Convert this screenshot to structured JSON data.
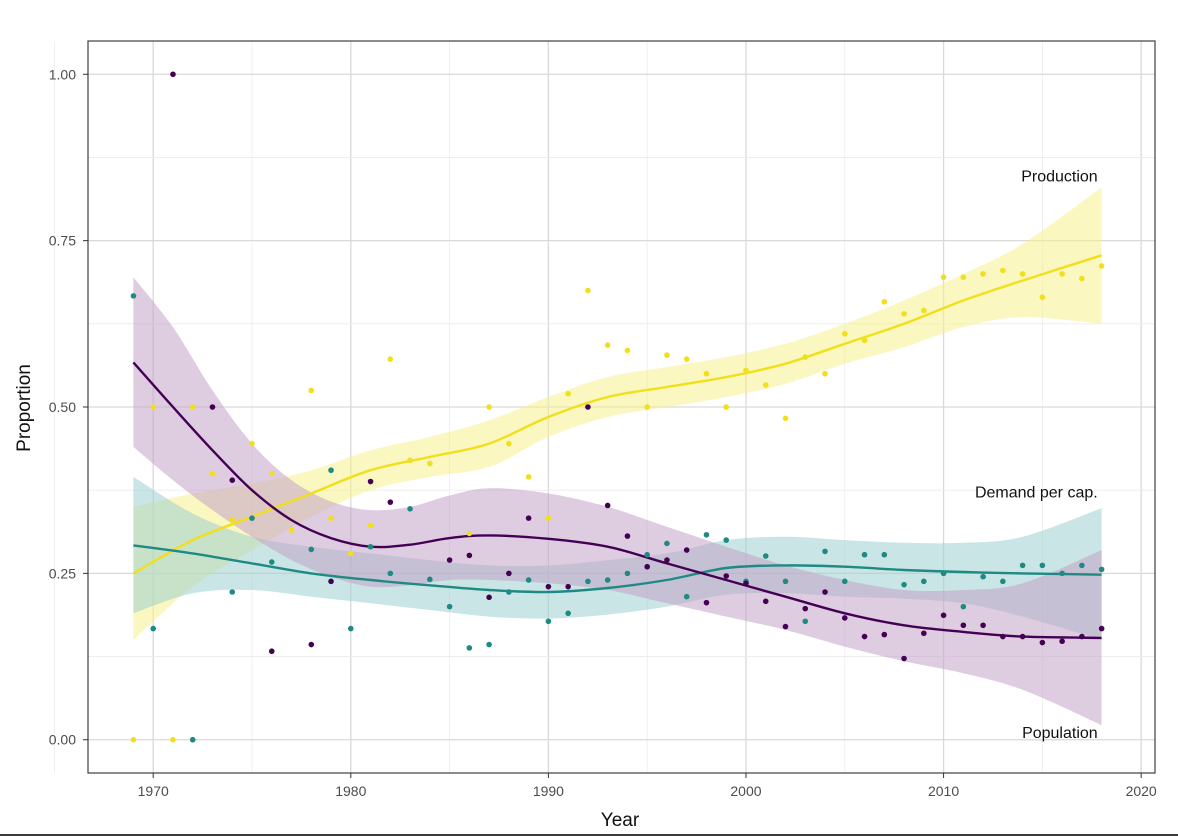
{
  "chart_data": {
    "type": "scatter",
    "title": "",
    "xlabel": "Year",
    "ylabel": "Proportion",
    "xlim": [
      1966.7,
      2020.7
    ],
    "ylim": [
      -0.05,
      1.05
    ],
    "x_ticks": [
      1970,
      1980,
      1990,
      2000,
      2010,
      2020
    ],
    "y_ticks": [
      0.0,
      0.25,
      0.5,
      0.75,
      1.0
    ],
    "y_tick_labels": [
      "0.00",
      "0.25",
      "0.50",
      "0.75",
      "1.00"
    ],
    "grid": true,
    "legend": "direct labels at right end of each trend",
    "series": [
      {
        "name": "Production",
        "color": "#f2df1b",
        "band_color": "#f6f08c",
        "points": [
          [
            1969,
            0.0
          ],
          [
            1970,
            0.5
          ],
          [
            1971,
            0.0
          ],
          [
            1972,
            0.5
          ],
          [
            1973,
            0.4
          ],
          [
            1974,
            0.33
          ],
          [
            1975,
            0.445
          ],
          [
            1976,
            0.4
          ],
          [
            1977,
            0.315
          ],
          [
            1978,
            0.525
          ],
          [
            1979,
            0.333
          ],
          [
            1980,
            0.28
          ],
          [
            1981,
            0.322
          ],
          [
            1982,
            0.572
          ],
          [
            1983,
            0.42
          ],
          [
            1984,
            0.415
          ],
          [
            1986,
            0.31
          ],
          [
            1987,
            0.5
          ],
          [
            1988,
            0.445
          ],
          [
            1989,
            0.395
          ],
          [
            1990,
            0.333
          ],
          [
            1991,
            0.52
          ],
          [
            1992,
            0.675
          ],
          [
            1993,
            0.593
          ],
          [
            1994,
            0.585
          ],
          [
            1995,
            0.5
          ],
          [
            1996,
            0.578
          ],
          [
            1997,
            0.572
          ],
          [
            1998,
            0.55
          ],
          [
            1999,
            0.5
          ],
          [
            2000,
            0.555
          ],
          [
            2001,
            0.533
          ],
          [
            2002,
            0.483
          ],
          [
            2003,
            0.575
          ],
          [
            2004,
            0.55
          ],
          [
            2005,
            0.61
          ],
          [
            2006,
            0.6
          ],
          [
            2007,
            0.658
          ],
          [
            2008,
            0.64
          ],
          [
            2009,
            0.645
          ],
          [
            2010,
            0.695
          ],
          [
            2011,
            0.695
          ],
          [
            2012,
            0.7
          ],
          [
            2013,
            0.705
          ],
          [
            2014,
            0.7
          ],
          [
            2015,
            0.665
          ],
          [
            2016,
            0.7
          ],
          [
            2017,
            0.693
          ],
          [
            2018,
            0.712
          ]
        ],
        "trend": [
          [
            1969,
            0.25
          ],
          [
            1972,
            0.3
          ],
          [
            1975,
            0.335
          ],
          [
            1978,
            0.37
          ],
          [
            1981,
            0.405
          ],
          [
            1984,
            0.425
          ],
          [
            1987,
            0.445
          ],
          [
            1990,
            0.485
          ],
          [
            1993,
            0.515
          ],
          [
            1996,
            0.53
          ],
          [
            1999,
            0.545
          ],
          [
            2002,
            0.565
          ],
          [
            2005,
            0.595
          ],
          [
            2008,
            0.625
          ],
          [
            2011,
            0.66
          ],
          [
            2014,
            0.69
          ],
          [
            2018,
            0.728
          ]
        ],
        "band_upper": [
          [
            1969,
            0.35
          ],
          [
            1972,
            0.37
          ],
          [
            1975,
            0.385
          ],
          [
            1978,
            0.405
          ],
          [
            1981,
            0.435
          ],
          [
            1984,
            0.455
          ],
          [
            1987,
            0.48
          ],
          [
            1990,
            0.515
          ],
          [
            1993,
            0.545
          ],
          [
            1996,
            0.56
          ],
          [
            1999,
            0.575
          ],
          [
            2002,
            0.595
          ],
          [
            2005,
            0.625
          ],
          [
            2008,
            0.66
          ],
          [
            2011,
            0.7
          ],
          [
            2014,
            0.745
          ],
          [
            2018,
            0.83
          ]
        ],
        "band_lower": [
          [
            1969,
            0.15
          ],
          [
            1972,
            0.23
          ],
          [
            1975,
            0.285
          ],
          [
            1978,
            0.335
          ],
          [
            1981,
            0.375
          ],
          [
            1984,
            0.395
          ],
          [
            1987,
            0.41
          ],
          [
            1990,
            0.455
          ],
          [
            1993,
            0.485
          ],
          [
            1996,
            0.5
          ],
          [
            1999,
            0.515
          ],
          [
            2002,
            0.535
          ],
          [
            2005,
            0.565
          ],
          [
            2008,
            0.59
          ],
          [
            2011,
            0.62
          ],
          [
            2014,
            0.635
          ],
          [
            2018,
            0.625
          ]
        ],
        "label_x": 2017.8,
        "label_y": 0.848
      },
      {
        "name": "Demand per cap.",
        "color": "#1f8a83",
        "band_color": "#9fcfd0",
        "points": [
          [
            1969,
            0.667
          ],
          [
            1970,
            0.167
          ],
          [
            1972,
            0.0
          ],
          [
            1974,
            0.222
          ],
          [
            1975,
            0.333
          ],
          [
            1976,
            0.267
          ],
          [
            1978,
            0.286
          ],
          [
            1979,
            0.405
          ],
          [
            1980,
            0.167
          ],
          [
            1981,
            0.29
          ],
          [
            1982,
            0.25
          ],
          [
            1983,
            0.347
          ],
          [
            1984,
            0.241
          ],
          [
            1985,
            0.2
          ],
          [
            1986,
            0.138
          ],
          [
            1987,
            0.143
          ],
          [
            1988,
            0.222
          ],
          [
            1989,
            0.24
          ],
          [
            1990,
            0.178
          ],
          [
            1991,
            0.19
          ],
          [
            1992,
            0.238
          ],
          [
            1993,
            0.24
          ],
          [
            1994,
            0.25
          ],
          [
            1995,
            0.278
          ],
          [
            1996,
            0.295
          ],
          [
            1997,
            0.215
          ],
          [
            1998,
            0.308
          ],
          [
            1999,
            0.3
          ],
          [
            2000,
            0.238
          ],
          [
            2001,
            0.276
          ],
          [
            2002,
            0.238
          ],
          [
            2003,
            0.178
          ],
          [
            2004,
            0.283
          ],
          [
            2005,
            0.238
          ],
          [
            2006,
            0.278
          ],
          [
            2007,
            0.278
          ],
          [
            2008,
            0.233
          ],
          [
            2009,
            0.238
          ],
          [
            2010,
            0.25
          ],
          [
            2011,
            0.2
          ],
          [
            2012,
            0.245
          ],
          [
            2013,
            0.238
          ],
          [
            2014,
            0.262
          ],
          [
            2015,
            0.262
          ],
          [
            2016,
            0.25
          ],
          [
            2017,
            0.262
          ],
          [
            2018,
            0.256
          ]
        ],
        "trend": [
          [
            1969,
            0.292
          ],
          [
            1972,
            0.28
          ],
          [
            1975,
            0.265
          ],
          [
            1978,
            0.25
          ],
          [
            1981,
            0.24
          ],
          [
            1984,
            0.232
          ],
          [
            1987,
            0.225
          ],
          [
            1990,
            0.222
          ],
          [
            1993,
            0.228
          ],
          [
            1996,
            0.24
          ],
          [
            1999,
            0.258
          ],
          [
            2002,
            0.262
          ],
          [
            2005,
            0.26
          ],
          [
            2008,
            0.255
          ],
          [
            2011,
            0.252
          ],
          [
            2014,
            0.25
          ],
          [
            2018,
            0.248
          ]
        ],
        "band_upper": [
          [
            1969,
            0.395
          ],
          [
            1972,
            0.34
          ],
          [
            1975,
            0.305
          ],
          [
            1978,
            0.29
          ],
          [
            1981,
            0.28
          ],
          [
            1984,
            0.27
          ],
          [
            1987,
            0.262
          ],
          [
            1990,
            0.262
          ],
          [
            1993,
            0.27
          ],
          [
            1996,
            0.28
          ],
          [
            1999,
            0.3
          ],
          [
            2002,
            0.305
          ],
          [
            2005,
            0.3
          ],
          [
            2008,
            0.296
          ],
          [
            2011,
            0.296
          ],
          [
            2014,
            0.305
          ],
          [
            2018,
            0.348
          ]
        ],
        "band_lower": [
          [
            1969,
            0.19
          ],
          [
            1972,
            0.22
          ],
          [
            1975,
            0.225
          ],
          [
            1978,
            0.215
          ],
          [
            1981,
            0.205
          ],
          [
            1984,
            0.195
          ],
          [
            1987,
            0.185
          ],
          [
            1990,
            0.182
          ],
          [
            1993,
            0.188
          ],
          [
            1996,
            0.2
          ],
          [
            1999,
            0.218
          ],
          [
            2002,
            0.22
          ],
          [
            2005,
            0.215
          ],
          [
            2008,
            0.212
          ],
          [
            2011,
            0.205
          ],
          [
            2014,
            0.185
          ],
          [
            2018,
            0.15
          ]
        ],
        "label_x": 2017.8,
        "label_y": 0.373
      },
      {
        "name": "Population",
        "color": "#440154",
        "band_color": "#c2a2c9",
        "points": [
          [
            1971,
            1.0
          ],
          [
            1973,
            0.5
          ],
          [
            1974,
            0.39
          ],
          [
            1976,
            0.133
          ],
          [
            1978,
            0.143
          ],
          [
            1979,
            0.238
          ],
          [
            1981,
            0.388
          ],
          [
            1982,
            0.357
          ],
          [
            1985,
            0.27
          ],
          [
            1986,
            0.277
          ],
          [
            1987,
            0.214
          ],
          [
            1988,
            0.25
          ],
          [
            1989,
            0.333
          ],
          [
            1990,
            0.23
          ],
          [
            1991,
            0.23
          ],
          [
            1992,
            0.5
          ],
          [
            1993,
            0.352
          ],
          [
            1994,
            0.306
          ],
          [
            1995,
            0.26
          ],
          [
            1996,
            0.27
          ],
          [
            1997,
            0.285
          ],
          [
            1998,
            0.206
          ],
          [
            1999,
            0.246
          ],
          [
            2000,
            0.235
          ],
          [
            2001,
            0.208
          ],
          [
            2002,
            0.17
          ],
          [
            2003,
            0.197
          ],
          [
            2004,
            0.222
          ],
          [
            2005,
            0.183
          ],
          [
            2006,
            0.155
          ],
          [
            2007,
            0.158
          ],
          [
            2008,
            0.122
          ],
          [
            2009,
            0.16
          ],
          [
            2010,
            0.187
          ],
          [
            2011,
            0.172
          ],
          [
            2012,
            0.172
          ],
          [
            2013,
            0.155
          ],
          [
            2014,
            0.155
          ],
          [
            2015,
            0.146
          ],
          [
            2016,
            0.148
          ],
          [
            2017,
            0.155
          ],
          [
            2018,
            0.167
          ]
        ],
        "trend": [
          [
            1969,
            0.567
          ],
          [
            1971,
            0.5
          ],
          [
            1973,
            0.435
          ],
          [
            1975,
            0.375
          ],
          [
            1977,
            0.33
          ],
          [
            1979,
            0.303
          ],
          [
            1981,
            0.29
          ],
          [
            1983,
            0.293
          ],
          [
            1985,
            0.303
          ],
          [
            1987,
            0.307
          ],
          [
            1990,
            0.302
          ],
          [
            1993,
            0.29
          ],
          [
            1996,
            0.265
          ],
          [
            1999,
            0.24
          ],
          [
            2002,
            0.215
          ],
          [
            2005,
            0.19
          ],
          [
            2008,
            0.172
          ],
          [
            2011,
            0.162
          ],
          [
            2014,
            0.155
          ],
          [
            2018,
            0.153
          ]
        ],
        "band_upper": [
          [
            1969,
            0.695
          ],
          [
            1971,
            0.62
          ],
          [
            1973,
            0.525
          ],
          [
            1975,
            0.445
          ],
          [
            1977,
            0.39
          ],
          [
            1979,
            0.358
          ],
          [
            1981,
            0.345
          ],
          [
            1983,
            0.35
          ],
          [
            1985,
            0.367
          ],
          [
            1987,
            0.378
          ],
          [
            1990,
            0.37
          ],
          [
            1993,
            0.35
          ],
          [
            1996,
            0.32
          ],
          [
            1999,
            0.29
          ],
          [
            2002,
            0.262
          ],
          [
            2005,
            0.24
          ],
          [
            2008,
            0.225
          ],
          [
            2011,
            0.225
          ],
          [
            2014,
            0.235
          ],
          [
            2018,
            0.285
          ]
        ],
        "band_lower": [
          [
            1969,
            0.44
          ],
          [
            1971,
            0.39
          ],
          [
            1973,
            0.345
          ],
          [
            1975,
            0.305
          ],
          [
            1977,
            0.27
          ],
          [
            1979,
            0.245
          ],
          [
            1981,
            0.23
          ],
          [
            1983,
            0.232
          ],
          [
            1985,
            0.24
          ],
          [
            1987,
            0.24
          ],
          [
            1990,
            0.235
          ],
          [
            1993,
            0.225
          ],
          [
            1996,
            0.205
          ],
          [
            1999,
            0.185
          ],
          [
            2002,
            0.165
          ],
          [
            2005,
            0.14
          ],
          [
            2008,
            0.118
          ],
          [
            2011,
            0.1
          ],
          [
            2014,
            0.075
          ],
          [
            2018,
            0.022
          ]
        ],
        "label_x": 2017.8,
        "label_y": 0.0115
      }
    ]
  }
}
